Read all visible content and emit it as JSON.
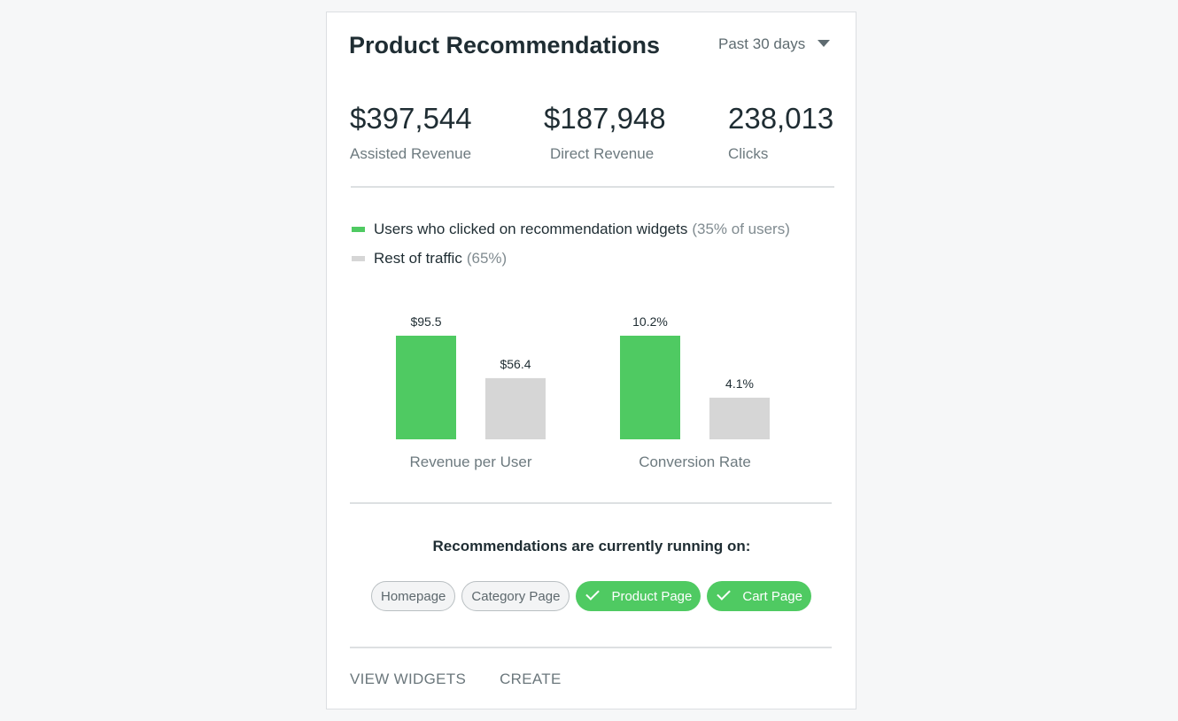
{
  "card": {
    "title": "Product Recommendations",
    "date_range": "Past 30 days"
  },
  "kpis": [
    {
      "value": "$397,544",
      "label": "Assisted Revenue"
    },
    {
      "value": "$187,948",
      "label": "Direct Revenue"
    },
    {
      "value": "238,013",
      "label": "Clicks"
    }
  ],
  "legend": [
    {
      "label": "Users who clicked on recommendation widgets",
      "note": "(35% of users)",
      "color": "#4fca62"
    },
    {
      "label": "Rest of traffic",
      "note": "(65%)",
      "color": "#d6d6d6"
    }
  ],
  "chart_data": {
    "type": "bar",
    "categories": [
      "Revenue per User",
      "Conversion Rate"
    ],
    "series": [
      {
        "values": [
          95.5,
          10.2
        ],
        "labels": [
          "$95.5",
          "10.2%"
        ],
        "color": "#4fca62"
      },
      {
        "values": [
          56.4,
          4.1
        ],
        "labels": [
          "$56.4",
          "4.1%"
        ],
        "color": "#d6d6d6"
      }
    ]
  },
  "running": {
    "title": "Recommendations are currently running on:",
    "chips": [
      {
        "label": "Homepage",
        "active": false
      },
      {
        "label": "Category Page",
        "active": false
      },
      {
        "label": "Product Page",
        "active": true
      },
      {
        "label": "Cart Page",
        "active": true
      }
    ]
  },
  "footer": {
    "view_widgets": "VIEW WIDGETS",
    "create": "CREATE"
  }
}
